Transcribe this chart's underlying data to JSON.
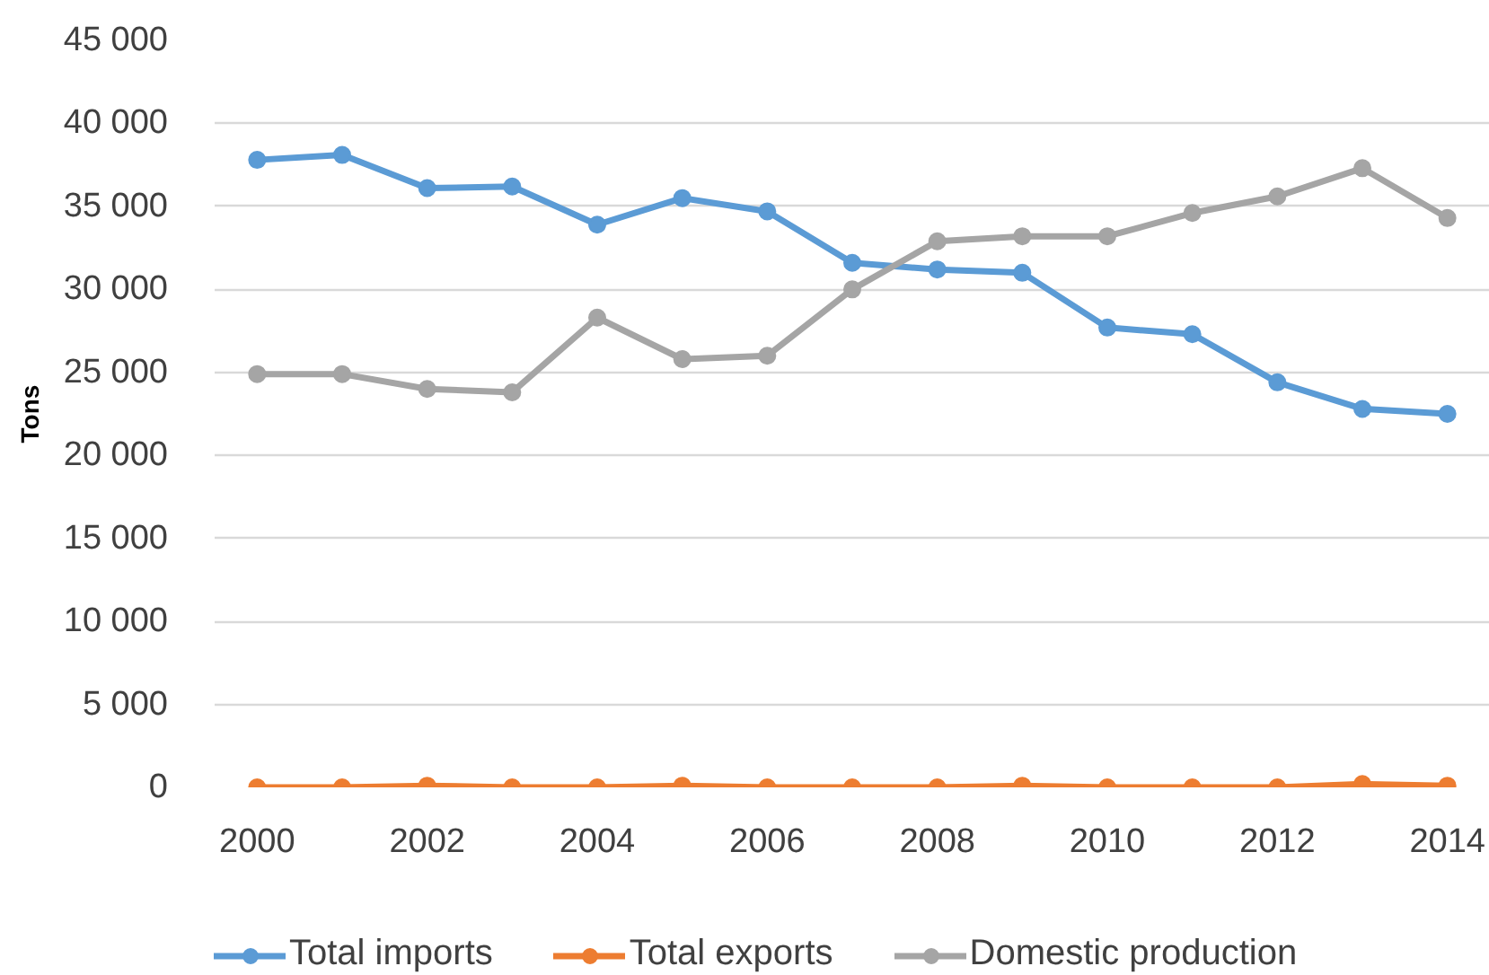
{
  "chart_data": {
    "type": "line",
    "ylabel": "Tons",
    "x": [
      2000,
      2001,
      2002,
      2003,
      2004,
      2005,
      2006,
      2007,
      2008,
      2009,
      2010,
      2011,
      2012,
      2013,
      2014
    ],
    "series": [
      {
        "name": "Total imports",
        "color": "#5b9bd5",
        "values": [
          37800,
          38100,
          36100,
          36200,
          33900,
          35500,
          34700,
          31600,
          31200,
          31000,
          27700,
          27300,
          24400,
          22800,
          22500
        ]
      },
      {
        "name": "Total exports",
        "color": "#ed7d31",
        "values": [
          0,
          0,
          100,
          0,
          0,
          100,
          0,
          0,
          0,
          100,
          0,
          0,
          0,
          200,
          100
        ]
      },
      {
        "name": "Domestic production",
        "color": "#a5a5a5",
        "values": [
          24900,
          24900,
          24000,
          23800,
          28300,
          25800,
          26000,
          30000,
          32900,
          33200,
          33200,
          34600,
          35600,
          37300,
          34300
        ]
      }
    ],
    "xlim": [
      1999.5,
      2014.5
    ],
    "xticks": [
      2000,
      2002,
      2004,
      2006,
      2008,
      2010,
      2012,
      2014
    ],
    "ylim": [
      0,
      45000
    ],
    "yticks": [
      0,
      {
        "value": 5000,
        "label": "5 000"
      },
      {
        "value": 10000,
        "label": "10 000"
      },
      {
        "value": 15000,
        "label": "15 000"
      },
      {
        "value": 20000,
        "label": "20 000"
      },
      {
        "value": 25000,
        "label": "25 000"
      },
      {
        "value": 30000,
        "label": "30 000"
      },
      {
        "value": 35000,
        "label": "35 000"
      },
      {
        "value": 40000,
        "label": "40 000"
      },
      {
        "value": 45000,
        "label": "45 000"
      }
    ],
    "grid": "y",
    "legend": "bottom",
    "marker": "circle",
    "line_style": "solid"
  }
}
